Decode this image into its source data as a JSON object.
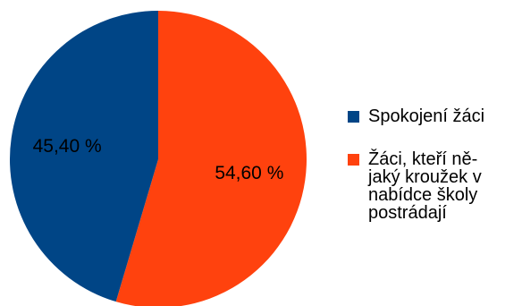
{
  "chart_data": {
    "type": "pie",
    "slices": [
      {
        "label": "Spokojení žáci",
        "value": 45.4,
        "value_label": "45,40 %",
        "color": "#004586"
      },
      {
        "label": "Žáci, kteří ně-\njaký kroužek v\nnabídce školy\npostrádají",
        "value": 54.6,
        "value_label": "54,60 %",
        "color": "#ff420e"
      }
    ],
    "start_angle_deg": 0,
    "direction": "clockwise",
    "legend_position": "right"
  }
}
